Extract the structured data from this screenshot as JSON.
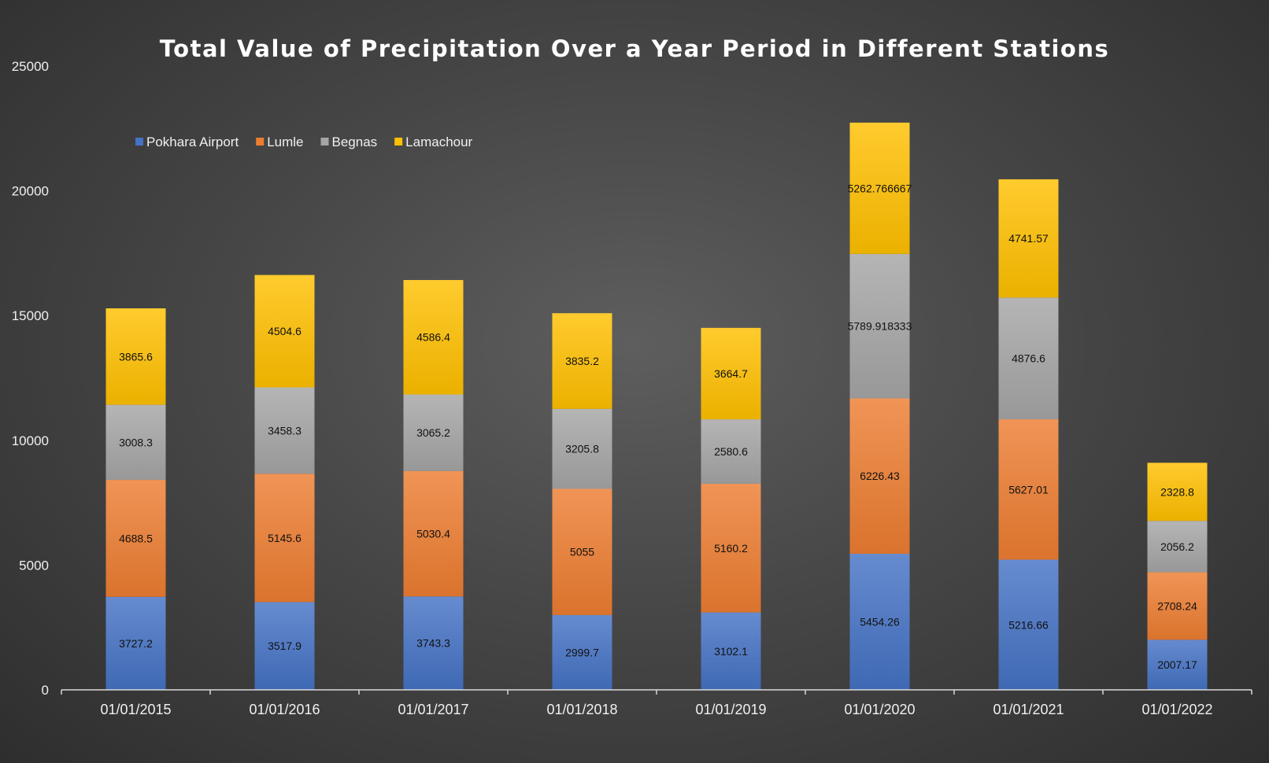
{
  "chart_data": {
    "type": "bar",
    "stacked": true,
    "title": "Total Value of Precipitation Over a Year Period in Different Stations",
    "xlabel": "",
    "ylabel": "",
    "ylim": [
      0,
      25000
    ],
    "yticks": [
      "0",
      "5000",
      "10000",
      "15000",
      "20000",
      "25000"
    ],
    "grid": false,
    "legend_position": "top-left",
    "categories": [
      "01/01/2015",
      "01/01/2016",
      "01/01/2017",
      "01/01/2018",
      "01/01/2019",
      "01/01/2020",
      "01/01/2021",
      "01/01/2022"
    ],
    "series": [
      {
        "name": "Pokhara Airport",
        "color": "#4472c4",
        "values": [
          3727.2,
          3517.9,
          3743.3,
          2999.7,
          3102.1,
          5454.26,
          5216.66,
          2007.17
        ],
        "labels": [
          "3727.2",
          "3517.9",
          "3743.3",
          "2999.7",
          "3102.1",
          "5454.26",
          "5216.66",
          "2007.17"
        ]
      },
      {
        "name": "Lumle",
        "color": "#ed7d31",
        "values": [
          4688.5,
          5145.6,
          5030.4,
          5055,
          5160.2,
          6226.43,
          5627.01,
          2708.24
        ],
        "labels": [
          "4688.5",
          "5145.6",
          "5030.4",
          "5055",
          "5160.2",
          "6226.43",
          "5627.01",
          "2708.24"
        ]
      },
      {
        "name": "Begnas",
        "color": "#a5a5a5",
        "values": [
          3008.3,
          3458.3,
          3065.2,
          3205.8,
          2580.6,
          5789.918333,
          4876.6,
          2056.2
        ],
        "labels": [
          "3008.3",
          "3458.3",
          "3065.2",
          "3205.8",
          "2580.6",
          "5789.918333",
          "4876.6",
          "2056.2"
        ]
      },
      {
        "name": "Lamachour",
        "color": "#ffc000",
        "values": [
          3865.6,
          4504.6,
          4586.4,
          3835.2,
          3664.7,
          5262.766667,
          4741.57,
          2328.8
        ],
        "labels": [
          "3865.6",
          "4504.6",
          "4586.4",
          "3835.2",
          "3664.7",
          "5262.766667",
          "4741.57",
          "2328.8"
        ]
      }
    ]
  }
}
